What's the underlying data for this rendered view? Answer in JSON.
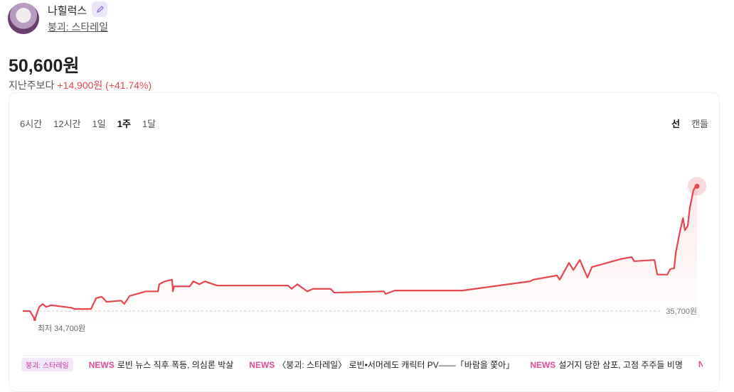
{
  "header": {
    "name": "나힐럭스",
    "subtitle": "붕괴: 스타레일"
  },
  "price": "50,600원",
  "change_label": "지난주보다",
  "change": "+14,900원 (+41.74%)",
  "tabs": [
    "6시간",
    "12시간",
    "1일",
    "1주",
    "1달"
  ],
  "active_tab": 3,
  "chart_modes": [
    "선",
    "캔들"
  ],
  "active_mode": 0,
  "chart_data": {
    "type": "line",
    "color": "#e5474f",
    "xlim": [
      0,
      168
    ],
    "ylim": [
      33500,
      56000
    ],
    "x": [
      0,
      1.8,
      3.0,
      4.1,
      5.0,
      5.8,
      7.1,
      12.1,
      12.9,
      17.0,
      18.3,
      19.7,
      20.9,
      24.5,
      25.3,
      26.6,
      30.7,
      33.7,
      34.0,
      35.4,
      37.2,
      37.4,
      37.7,
      41.6,
      42.5,
      44.0,
      45.4,
      48.4,
      66.1,
      67.0,
      68.4,
      70.9,
      72.3,
      76.7,
      77.6,
      90.0,
      90.4,
      92.7,
      109.5,
      126.4,
      127.2,
      133.1,
      133.8,
      136.1,
      137.2,
      138.8,
      140.7,
      141.8,
      148.9,
      151.7,
      152.4,
      157.4,
      158.1,
      160.6,
      161.3,
      162.3,
      162.7,
      163.6,
      164.5,
      165.0,
      165.7,
      166.2,
      167.1,
      167.6,
      168.0
    ],
    "values": [
      35700,
      35700,
      34700,
      36200,
      36550,
      36200,
      36400,
      36100,
      35950,
      35950,
      37250,
      37400,
      36800,
      36950,
      36550,
      37500,
      38050,
      38050,
      38900,
      39250,
      39450,
      38050,
      38650,
      38650,
      39250,
      38900,
      39250,
      38750,
      38750,
      38350,
      38900,
      38050,
      38350,
      38350,
      37900,
      38050,
      37750,
      38150,
      38150,
      39250,
      39450,
      39950,
      39450,
      41450,
      40600,
      41800,
      39700,
      40950,
      41900,
      42150,
      41650,
      41800,
      40050,
      40050,
      40700,
      40800,
      42650,
      44850,
      46800,
      45350,
      45900,
      48000,
      50100,
      50550,
      50600
    ],
    "baseline": {
      "value": 35700,
      "label": "35,700원"
    },
    "low": {
      "value": 34700,
      "label": "최저 34,700원"
    }
  },
  "news": {
    "tag": "붕괴: 스타레일",
    "label": "NEWS",
    "items": [
      "로빈 뉴스 직후 폭등, 의심론 박살",
      "〈붕괴: 스타레일〉 로빈•서머레도 캐릭터 PV——「바람을 쫓아」",
      "설거지 당한 삼포, 고점 주주들 비명"
    ]
  }
}
